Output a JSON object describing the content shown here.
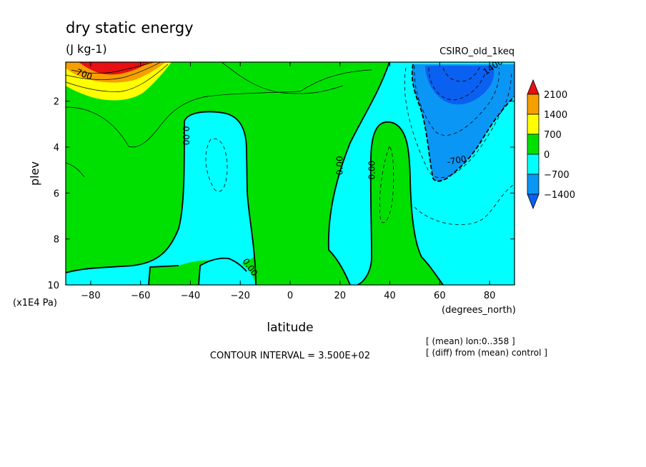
{
  "chart_data": {
    "type": "heatmap",
    "title": "dry static energy",
    "units": "(J kg-1)",
    "dataset_label": "CSIRO_old_1keq",
    "xlabel": "latitude",
    "ylabel": "plev",
    "x_unit_label": "(degrees_north)",
    "y_unit_label": "(x1E4 Pa)",
    "xlim": [
      -90,
      90
    ],
    "ylim": [
      10,
      0.3
    ],
    "x_ticks": [
      -80,
      -60,
      -40,
      -20,
      0,
      20,
      40,
      60,
      80
    ],
    "y_ticks": [
      2,
      4,
      6,
      8,
      10
    ],
    "contour_interval_label": "CONTOUR INTERVAL = 3.500E+02",
    "notes": [
      "[ (mean) lon:0..358 ]",
      "[ (diff) from (mean) control ]"
    ],
    "colorbar": {
      "labels": [
        "2100",
        "1400",
        "700",
        "0",
        "−700",
        "−1400"
      ],
      "colors": [
        "#e81010",
        "#f5a000",
        "#ffff00",
        "#00e000",
        "#00ffff",
        "#0a96f5",
        "#0a60f0"
      ]
    },
    "contour_labels": [
      {
        "text": "700",
        "lat": -83,
        "p": 0.95,
        "rot": 20
      },
      {
        "text": "0.00",
        "lat": -43,
        "p": 3.5,
        "rot": 90
      },
      {
        "text": "0.00",
        "lat": -17,
        "p": 9.3,
        "rot": 55
      },
      {
        "text": "0.00",
        "lat": 21,
        "p": 4.8,
        "rot": -90
      },
      {
        "text": "0.00",
        "lat": 34,
        "p": 5.0,
        "rot": -90
      },
      {
        "text": "-700",
        "lat": 67,
        "p": 4.7,
        "rot": -10
      },
      {
        "text": "1400",
        "lat": 82,
        "p": 0.6,
        "rot": -35
      }
    ]
  }
}
